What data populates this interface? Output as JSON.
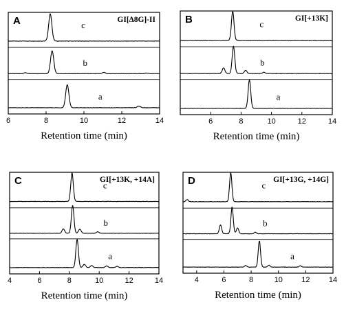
{
  "chart_data": [
    {
      "panel": "A",
      "title": "GI[∆8G]-II",
      "type": "line",
      "xlabel": "Retention time (min)",
      "xlim": [
        6,
        14
      ],
      "xticks": [
        "6",
        "8",
        "10",
        "12",
        "14"
      ],
      "series": [
        {
          "name": "c",
          "peaks": [
            {
              "x": 8.22,
              "h": 0.82
            }
          ]
        },
        {
          "name": "b",
          "peaks": [
            {
              "x": 8.32,
              "h": 0.75
            },
            {
              "x": 6.9,
              "h": 0.03
            },
            {
              "x": 11.05,
              "h": 0.04
            },
            {
              "x": 13.3,
              "h": 0.02
            }
          ]
        },
        {
          "name": "a",
          "peaks": [
            {
              "x": 9.12,
              "h": 0.7
            },
            {
              "x": 12.9,
              "h": 0.05
            }
          ]
        }
      ]
    },
    {
      "panel": "B",
      "title": "GI[+13K]",
      "type": "line",
      "xlabel": "Retention time (min)",
      "xlim": [
        4,
        14
      ],
      "xticks": [
        "6",
        "8",
        "10",
        "12",
        "14"
      ],
      "series": [
        {
          "name": "c",
          "peaks": [
            {
              "x": 7.45,
              "h": 0.85
            }
          ]
        },
        {
          "name": "b",
          "peaks": [
            {
              "x": 7.5,
              "h": 0.88
            },
            {
              "x": 6.85,
              "h": 0.18
            },
            {
              "x": 8.3,
              "h": 0.1
            },
            {
              "x": 9.5,
              "h": 0.04
            }
          ]
        },
        {
          "name": "a",
          "peaks": [
            {
              "x": 8.55,
              "h": 0.85
            }
          ]
        }
      ]
    },
    {
      "panel": "C",
      "title": "GI[+13K, +14A]",
      "type": "line",
      "xlabel": "Retention time (min)",
      "xlim": [
        4,
        14
      ],
      "xticks": [
        "4",
        "6",
        "8",
        "10",
        "12",
        "14"
      ],
      "series": [
        {
          "name": "c",
          "peaks": [
            {
              "x": 8.18,
              "h": 0.85
            }
          ]
        },
        {
          "name": "b",
          "peaks": [
            {
              "x": 8.22,
              "h": 0.95
            },
            {
              "x": 7.6,
              "h": 0.15
            },
            {
              "x": 8.7,
              "h": 0.14
            },
            {
              "x": 9.9,
              "h": 0.05
            }
          ]
        },
        {
          "name": "a",
          "peaks": [
            {
              "x": 8.52,
              "h": 0.85
            },
            {
              "x": 9.0,
              "h": 0.1
            },
            {
              "x": 9.5,
              "h": 0.06
            },
            {
              "x": 10.5,
              "h": 0.05
            },
            {
              "x": 11.2,
              "h": 0.04
            }
          ]
        }
      ]
    },
    {
      "panel": "D",
      "title": "GI[+13G, +14G]",
      "type": "line",
      "xlabel": "Retention time (min)",
      "xlim": [
        3,
        14
      ],
      "xticks": [
        "4",
        "6",
        "8",
        "10",
        "12",
        "14"
      ],
      "series": [
        {
          "name": "c",
          "peaks": [
            {
              "x": 6.5,
              "h": 0.85
            },
            {
              "x": 3.3,
              "h": 0.06
            }
          ]
        },
        {
          "name": "b",
          "peaks": [
            {
              "x": 6.6,
              "h": 0.9
            },
            {
              "x": 5.75,
              "h": 0.3
            },
            {
              "x": 7.0,
              "h": 0.2
            },
            {
              "x": 8.3,
              "h": 0.05
            }
          ]
        },
        {
          "name": "a",
          "peaks": [
            {
              "x": 8.6,
              "h": 0.82
            },
            {
              "x": 7.6,
              "h": 0.05
            },
            {
              "x": 9.3,
              "h": 0.06
            },
            {
              "x": 11.6,
              "h": 0.04
            }
          ]
        }
      ]
    }
  ]
}
